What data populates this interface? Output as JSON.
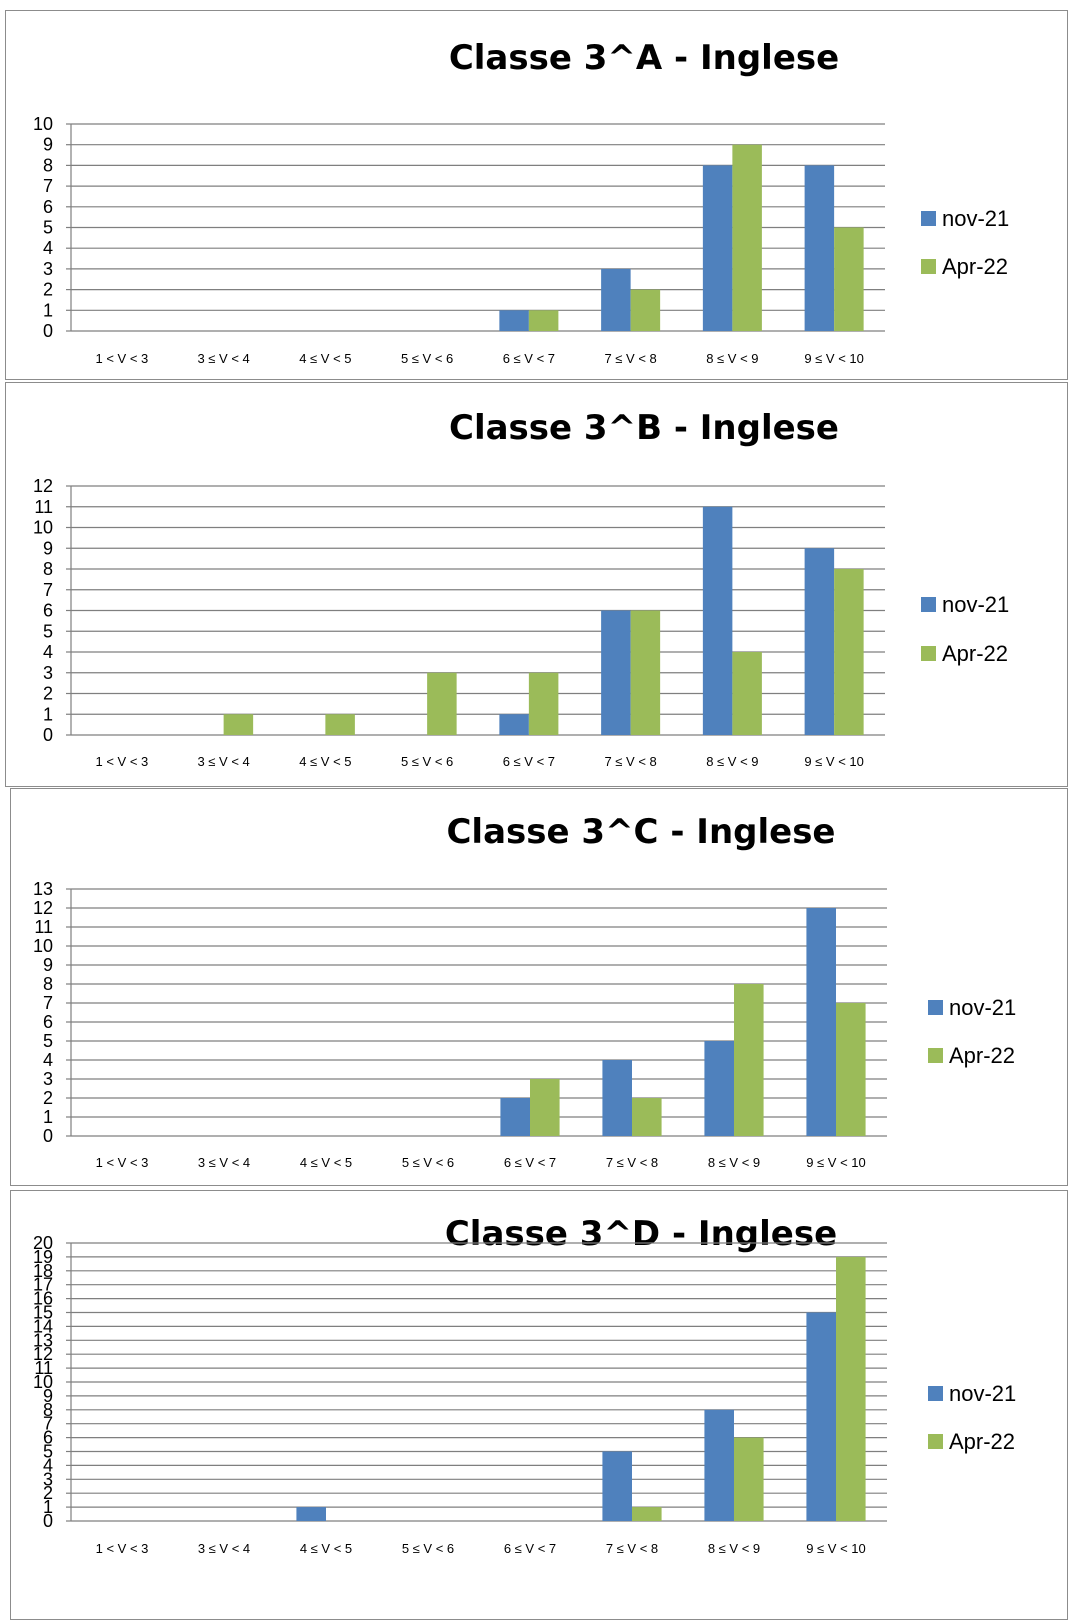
{
  "colors": {
    "nov": "#4F81BD",
    "apr": "#9BBB59",
    "grid": "#7f7f7f"
  },
  "chart_data": [
    {
      "type": "bar",
      "title": "Classe 3^A - Inglese",
      "categories": [
        "1 < V < 3",
        "3 ≤ V < 4",
        "4 ≤ V < 5",
        "5 ≤ V < 6",
        "6 ≤ V < 7",
        "7 ≤ V < 8",
        "8 ≤ V < 9",
        "9 ≤ V < 10"
      ],
      "ylim": [
        0,
        10
      ],
      "yticks": [
        "0",
        "1",
        "2",
        "3",
        "4",
        "5",
        "6",
        "7",
        "8",
        "9",
        "10"
      ],
      "grid": true,
      "legend_position": "right",
      "series": [
        {
          "name": "nov-21",
          "values": [
            0,
            0,
            0,
            0,
            1,
            3,
            8,
            8
          ]
        },
        {
          "name": "Apr-22",
          "values": [
            0,
            0,
            0,
            0,
            1,
            2,
            9,
            5
          ]
        }
      ]
    },
    {
      "type": "bar",
      "title": "Classe 3^B - Inglese",
      "categories": [
        "1 < V < 3",
        "3 ≤ V < 4",
        "4 ≤ V < 5",
        "5 ≤ V < 6",
        "6 ≤ V < 7",
        "7 ≤ V < 8",
        "8 ≤ V < 9",
        "9 ≤ V < 10"
      ],
      "ylim": [
        0,
        12
      ],
      "yticks": [
        "0",
        "1",
        "2",
        "3",
        "4",
        "5",
        "6",
        "7",
        "8",
        "9",
        "10",
        "11",
        "12"
      ],
      "grid": true,
      "legend_position": "right",
      "series": [
        {
          "name": "nov-21",
          "values": [
            0,
            0,
            0,
            0,
            1,
            6,
            11,
            9
          ]
        },
        {
          "name": "Apr-22",
          "values": [
            0,
            1,
            1,
            3,
            3,
            6,
            4,
            8
          ]
        }
      ]
    },
    {
      "type": "bar",
      "title": "Classe 3^C - Inglese",
      "categories": [
        "1 < V < 3",
        "3 ≤ V < 4",
        "4 ≤ V < 5",
        "5 ≤ V < 6",
        "6 ≤ V < 7",
        "7 ≤ V < 8",
        "8 ≤ V < 9",
        "9 ≤ V < 10"
      ],
      "ylim": [
        0,
        13
      ],
      "yticks": [
        "0",
        "1",
        "2",
        "3",
        "4",
        "5",
        "6",
        "7",
        "8",
        "9",
        "10",
        "11",
        "12",
        "13"
      ],
      "grid": true,
      "legend_position": "right",
      "series": [
        {
          "name": "nov-21",
          "values": [
            0,
            0,
            0,
            0,
            2,
            4,
            5,
            12
          ]
        },
        {
          "name": "Apr-22",
          "values": [
            0,
            0,
            0,
            0,
            3,
            2,
            8,
            7
          ]
        }
      ]
    },
    {
      "type": "bar",
      "title": "Classe 3^D - Inglese",
      "categories": [
        "1 < V < 3",
        "3 ≤ V < 4",
        "4 ≤ V < 5",
        "5 ≤ V < 6",
        "6 ≤ V < 7",
        "7 ≤ V < 8",
        "8 ≤ V < 9",
        "9 ≤ V < 10"
      ],
      "ylim": [
        0,
        20
      ],
      "yticks": [
        "0",
        "1",
        "2",
        "3",
        "4",
        "5",
        "6",
        "7",
        "8",
        "9",
        "10",
        "11",
        "12",
        "13",
        "14",
        "15",
        "16",
        "17",
        "18",
        "19",
        "20"
      ],
      "grid": true,
      "legend_position": "right",
      "series": [
        {
          "name": "nov-21",
          "values": [
            0,
            0,
            1,
            0,
            0,
            5,
            8,
            15
          ]
        },
        {
          "name": "Apr-22",
          "values": [
            0,
            0,
            0,
            0,
            0,
            1,
            6,
            19
          ]
        }
      ]
    }
  ]
}
